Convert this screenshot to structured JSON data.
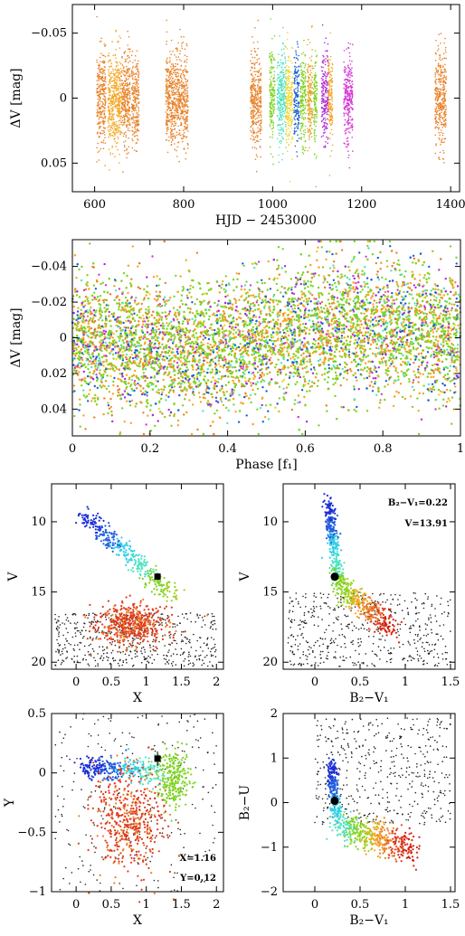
{
  "chart_data": [
    {
      "id": "lightcurve",
      "type": "scatter",
      "xlabel": "HJD − 2453000",
      "ylabel": "ΔV [mag]",
      "xlim": [
        550,
        1420
      ],
      "ylim": [
        0.072,
        -0.072
      ],
      "xticks": [
        600,
        800,
        1000,
        1200,
        1400
      ],
      "yticks": [
        -0.05,
        0,
        0.05
      ],
      "ytick_labels": [
        "−0.05",
        "0",
        "0.05"
      ],
      "observing_seasons": [
        {
          "x_range": [
            605,
            625
          ],
          "color": "#e8832a"
        },
        {
          "x_range": [
            630,
            660
          ],
          "color": "#f5a623"
        },
        {
          "x_range": [
            660,
            680
          ],
          "color": "#e8832a"
        },
        {
          "x_range": [
            683,
            700
          ],
          "color": "#e8832a"
        },
        {
          "x_range": [
            760,
            810
          ],
          "color": "#e8832a"
        },
        {
          "x_range": [
            950,
            975
          ],
          "color": "#e8832a"
        },
        {
          "x_range": [
            993,
            1005
          ],
          "color": "#7ed321"
        },
        {
          "x_range": [
            1010,
            1030
          ],
          "color": "#50e3c2"
        },
        {
          "x_range": [
            1030,
            1045
          ],
          "color": "#f5d623"
        },
        {
          "x_range": [
            1048,
            1060
          ],
          "color": "#1c5fd6"
        },
        {
          "x_range": [
            1062,
            1075
          ],
          "color": "#7ed321"
        },
        {
          "x_range": [
            1078,
            1090
          ],
          "color": "#e8a023"
        },
        {
          "x_range": [
            1092,
            1100
          ],
          "color": "#7ed321"
        },
        {
          "x_range": [
            1110,
            1125
          ],
          "color": "#b02ad6"
        },
        {
          "x_range": [
            1125,
            1135
          ],
          "color": "#f5a623"
        },
        {
          "x_range": [
            1160,
            1180
          ],
          "color": "#d63ad6"
        },
        {
          "x_range": [
            1365,
            1390
          ],
          "color": "#e8832a"
        }
      ]
    },
    {
      "id": "phased",
      "type": "scatter",
      "xlabel": "Phase [f₁]",
      "ylabel": "ΔV [mag]",
      "xlim": [
        0,
        1
      ],
      "ylim": [
        0.055,
        -0.055
      ],
      "xticks": [
        0,
        0.2,
        0.4,
        0.6,
        0.8,
        1
      ],
      "xtick_labels": [
        "0",
        "0.2",
        "0.4",
        "0.6",
        "0.8",
        "1"
      ],
      "yticks": [
        -0.04,
        -0.02,
        0,
        0.02,
        0.04
      ],
      "ytick_labels": [
        "−0.04",
        "−0.02",
        "0",
        "0.02",
        "0.04"
      ],
      "colors": [
        "#7ed321",
        "#f5a623",
        "#e8832a",
        "#1c5fd6",
        "#50e3c2",
        "#b02ad6",
        "#d63ad6",
        "#f5d623"
      ]
    },
    {
      "id": "cmd-x-v",
      "type": "scatter",
      "xlabel": "X",
      "ylabel": "V",
      "xlim": [
        -0.35,
        2.1
      ],
      "ylim": [
        20.5,
        7.3
      ],
      "xticks": [
        0,
        0.5,
        1,
        1.5,
        2
      ],
      "xtick_labels": [
        "0",
        "0.5",
        "1",
        "1.5",
        "2"
      ],
      "yticks": [
        10,
        15,
        20
      ],
      "target": {
        "x": 1.16,
        "y": 13.91
      }
    },
    {
      "id": "cmd-bv-v",
      "type": "scatter",
      "xlabel": "B₂−V₁",
      "ylabel": "V",
      "xlim": [
        -0.35,
        1.55
      ],
      "ylim": [
        20.5,
        7.3
      ],
      "xticks": [
        0,
        0.5,
        1,
        1.5
      ],
      "xtick_labels": [
        "0",
        "0.5",
        "1",
        "1.5"
      ],
      "yticks": [
        10,
        15,
        20
      ],
      "target": {
        "x": 0.22,
        "y": 13.91
      },
      "annotations": [
        "B₂−V₁=0.22",
        "V=13.91"
      ]
    },
    {
      "id": "cc-x-y",
      "type": "scatter",
      "xlabel": "X",
      "ylabel": "Y",
      "xlim": [
        -0.35,
        2.1
      ],
      "ylim": [
        -1,
        0.5
      ],
      "xticks": [
        0,
        0.5,
        1,
        1.5,
        2
      ],
      "xtick_labels": [
        "0",
        "0.5",
        "1",
        "1.5",
        "2"
      ],
      "yticks": [
        -1,
        -0.5,
        0,
        0.5
      ],
      "ytick_labels": [
        "−1",
        "−0.5",
        "0",
        "0.5"
      ],
      "target": {
        "x": 1.16,
        "y": 0.12
      },
      "annotations": [
        "X=1.16",
        "Y=0.12"
      ]
    },
    {
      "id": "cc-bv-bu",
      "type": "scatter",
      "xlabel": "B₂−V₁",
      "ylabel": "B₂−U",
      "xlim": [
        -0.35,
        1.55
      ],
      "ylim": [
        -2,
        2
      ],
      "xticks": [
        0,
        0.5,
        1,
        1.5
      ],
      "xtick_labels": [
        "0",
        "0.5",
        "1",
        "1.5"
      ],
      "yticks": [
        -2,
        -1,
        0,
        1,
        2
      ],
      "ytick_labels": [
        "−2",
        "−1",
        "0",
        "1",
        "2"
      ],
      "target": {
        "x": 0.22,
        "y": 0.04
      }
    }
  ]
}
